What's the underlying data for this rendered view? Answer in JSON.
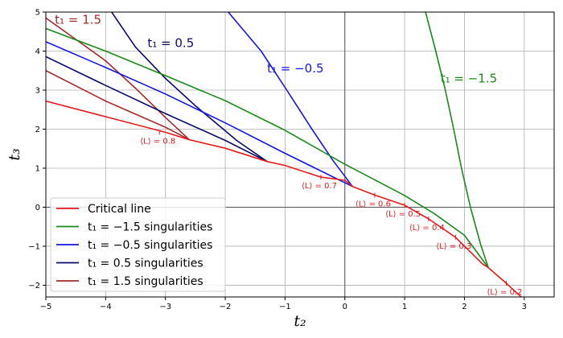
{
  "chart_data": {
    "type": "line",
    "title": "",
    "xlabel": "t₂",
    "ylabel": "t₃",
    "xlim": [
      -5,
      3.5
    ],
    "ylim": [
      -2.3,
      5
    ],
    "x_ticks": [
      -5,
      -4,
      -3,
      -2,
      -1,
      0,
      1,
      2,
      3
    ],
    "y_ticks": [
      -2,
      -1,
      0,
      1,
      2,
      3,
      4,
      5
    ],
    "grid": true,
    "legend_position": "lower-left",
    "series": [
      {
        "name": "Critical line",
        "color": "#e41a1c",
        "points": [
          [
            -5,
            2.72
          ],
          [
            -4,
            2.32
          ],
          [
            -3,
            1.92
          ],
          [
            -2.6,
            1.73
          ],
          [
            -2,
            1.51
          ],
          [
            -1.3,
            1.17
          ],
          [
            -1,
            1.07
          ],
          [
            -0.4,
            0.77
          ],
          [
            0,
            0.69
          ],
          [
            0.13,
            0.53
          ],
          [
            0.5,
            0.31
          ],
          [
            1,
            0.05
          ],
          [
            1.4,
            -0.3
          ],
          [
            1.85,
            -0.77
          ],
          [
            2.3,
            -1.45
          ],
          [
            2.4,
            -1.55
          ],
          [
            2.7,
            -1.95
          ],
          [
            2.95,
            -2.3
          ]
        ]
      },
      {
        "name": "t₁ = −1.5 singularities",
        "color": "#1a8a1a",
        "points": [
          [
            -5,
            4.58
          ],
          [
            -4,
            4.0
          ],
          [
            -3,
            3.37
          ],
          [
            -2,
            2.73
          ],
          [
            -1,
            1.97
          ],
          [
            0,
            1.1
          ],
          [
            1,
            0.3
          ],
          [
            1.5,
            -0.17
          ],
          [
            2,
            -0.72
          ],
          [
            2.4,
            -1.55
          ],
          [
            2.27,
            -0.95
          ],
          [
            2.1,
            0.0
          ],
          [
            1.95,
            1.0
          ],
          [
            1.82,
            2.0
          ],
          [
            1.68,
            3.0
          ],
          [
            1.52,
            4.0
          ],
          [
            1.35,
            5.0
          ]
        ]
      },
      {
        "name": "t₁ = −0.5 singularities",
        "color": "#1515e6",
        "points": [
          [
            -5,
            4.24
          ],
          [
            -4,
            3.58
          ],
          [
            -3,
            2.9
          ],
          [
            -2,
            2.16
          ],
          [
            -1,
            1.38
          ],
          [
            0.13,
            0.53
          ],
          [
            -0.2,
            1.2
          ],
          [
            -0.55,
            2.0
          ],
          [
            -0.97,
            3.0
          ],
          [
            -1.4,
            4.0
          ],
          [
            -1.95,
            5.0
          ]
        ]
      },
      {
        "name": "t₁ = 0.5 singularities",
        "color": "#0b0b6b",
        "points": [
          [
            -5,
            3.86
          ],
          [
            -4,
            3.12
          ],
          [
            -3,
            2.4
          ],
          [
            -2,
            1.71
          ],
          [
            -1.3,
            1.17
          ],
          [
            -1.8,
            1.7
          ],
          [
            -2.5,
            2.6
          ],
          [
            -3,
            3.3
          ],
          [
            -3.5,
            4.1
          ],
          [
            -3.9,
            5.0
          ]
        ]
      },
      {
        "name": "t₁ = 1.5 singularities",
        "color": "#a52a2a",
        "points": [
          [
            -5,
            3.5
          ],
          [
            -4,
            2.72
          ],
          [
            -3,
            2.05
          ],
          [
            -2.6,
            1.73
          ],
          [
            -3,
            2.3
          ],
          [
            -3.5,
            3.05
          ],
          [
            -4,
            3.75
          ],
          [
            -4.5,
            4.3
          ],
          [
            -5,
            4.85
          ]
        ]
      }
    ],
    "curve_labels": [
      {
        "text": "t₁ = 1.5",
        "x": -4.85,
        "y": 4.7,
        "color": "#a52a2a"
      },
      {
        "text": "t₁ = 0.5",
        "x": -3.3,
        "y": 4.1,
        "color": "#0b0b6b"
      },
      {
        "text": "t₁ = −0.5",
        "x": -1.3,
        "y": 3.45,
        "color": "#1515e6"
      },
      {
        "text": "t₁ = −1.5",
        "x": 1.6,
        "y": 3.2,
        "color": "#1a8a1a"
      }
    ],
    "annotations": [
      {
        "text": "⟨L⟩ = 0.8",
        "x": -3.1,
        "y": 1.92
      },
      {
        "text": "⟨L⟩ = 0.7",
        "x": -0.4,
        "y": 0.77
      },
      {
        "text": "⟨L⟩ = 0.6",
        "x": 0.5,
        "y": 0.31
      },
      {
        "text": "⟨L⟩ = 0.5",
        "x": 1.0,
        "y": 0.05
      },
      {
        "text": "⟨L⟩ = 0.4",
        "x": 1.4,
        "y": -0.3
      },
      {
        "text": "⟨L⟩ = 0.3",
        "x": 1.85,
        "y": -0.77
      },
      {
        "text": "⟨L⟩ = 0.2",
        "x": 2.7,
        "y": -1.95
      }
    ]
  }
}
